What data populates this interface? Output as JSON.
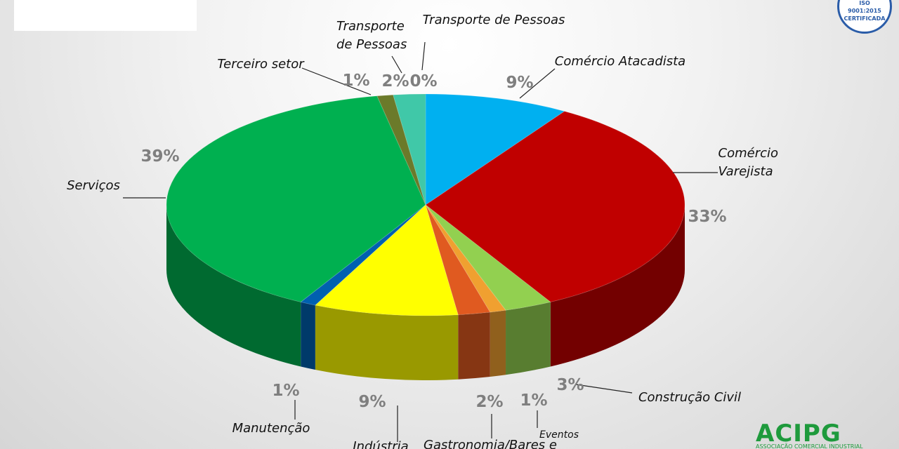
{
  "chart_data": {
    "type": "pie",
    "categories": [
      "Transporte de Pessoas",
      "Comércio Atacadista",
      "Comércio Varejista",
      "Construção Civil",
      "Eventos",
      "Gastronomia/Bares e",
      "Indústria",
      "Manutenção",
      "Serviços",
      "Terceiro setor",
      "Transporte de Pessoas"
    ],
    "values": [
      0,
      9,
      33,
      3,
      1,
      2,
      9,
      1,
      39,
      1,
      2
    ],
    "value_labels": [
      "0%",
      "9%",
      "33%",
      "3%",
      "1%",
      "2%",
      "9%",
      "1%",
      "39%",
      "1%",
      "2%"
    ],
    "colors": [
      "#a0522d",
      "#00b0f0",
      "#c00000",
      "#92d050",
      "#f0a030",
      "#e05a20",
      "#ffff00",
      "#0060b0",
      "#00b050",
      "#6b7a2a",
      "#40c8a8"
    ]
  },
  "branding": {
    "logo": "ACIPG",
    "logo_subtitle": "ASSOCIAÇÃO COMERCIAL INDUSTRIAL",
    "badge": [
      "ISO",
      "9001:2015",
      "CERTIFICADA"
    ]
  }
}
